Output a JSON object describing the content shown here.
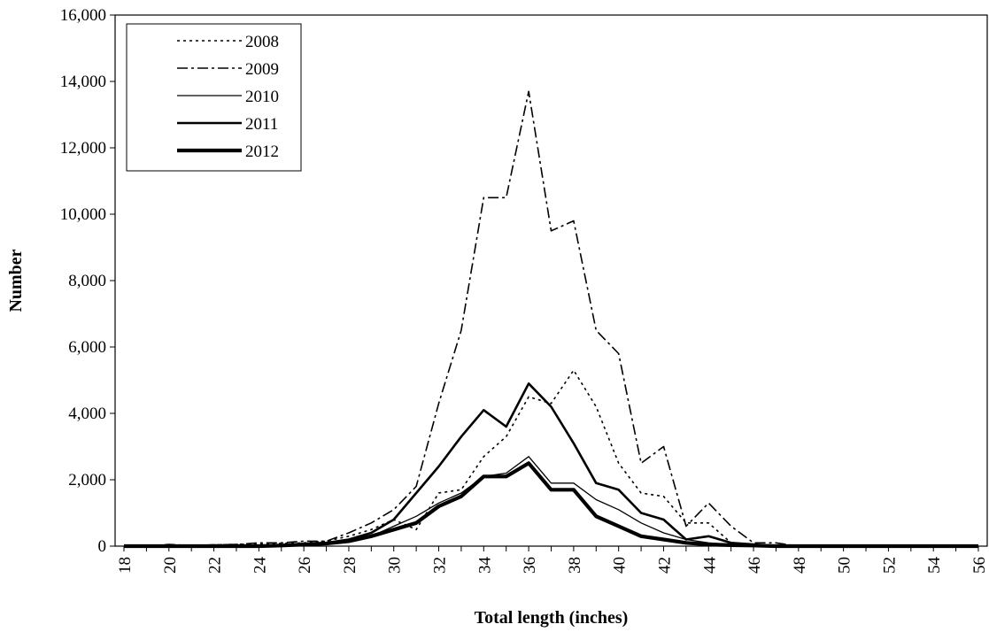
{
  "chart_data": {
    "type": "line",
    "xlabel": "Total length (inches)",
    "ylabel": "Number",
    "ylim": [
      0,
      16000
    ],
    "xlim": [
      18,
      56
    ],
    "x_tick_labels": [
      "18",
      "20",
      "22",
      "24",
      "26",
      "28",
      "30",
      "32",
      "34",
      "36",
      "38",
      "40",
      "42",
      "44",
      "46",
      "48",
      "50",
      "52",
      "54",
      "56"
    ],
    "y_tick_labels": [
      "0",
      "2,000",
      "4,000",
      "6,000",
      "8,000",
      "10,000",
      "12,000",
      "14,000",
      "16,000"
    ],
    "grid": false,
    "legend_position": "top-left",
    "x": [
      18,
      19,
      20,
      21,
      22,
      23,
      24,
      25,
      26,
      27,
      28,
      29,
      30,
      31,
      32,
      33,
      34,
      35,
      36,
      37,
      38,
      39,
      40,
      41,
      42,
      43,
      44,
      45,
      46,
      47,
      48,
      49,
      50,
      51,
      52,
      53,
      54,
      55,
      56
    ],
    "series": [
      {
        "name": "2008",
        "style": "dotted",
        "values": [
          0,
          0,
          30,
          20,
          40,
          50,
          60,
          80,
          100,
          150,
          300,
          500,
          800,
          500,
          1600,
          1700,
          2700,
          3300,
          4500,
          4300,
          5300,
          4200,
          2500,
          1600,
          1500,
          700,
          700,
          100,
          0,
          0,
          0,
          0,
          0,
          0,
          0,
          0,
          0,
          0,
          0
        ]
      },
      {
        "name": "2009",
        "style": "dashdot",
        "values": [
          0,
          0,
          50,
          20,
          40,
          50,
          100,
          100,
          150,
          150,
          400,
          700,
          1100,
          1800,
          4300,
          6500,
          10500,
          10500,
          13700,
          9500,
          9800,
          6500,
          5800,
          2500,
          3000,
          600,
          1300,
          600,
          100,
          100,
          0,
          0,
          0,
          0,
          0,
          0,
          0,
          0,
          0
        ]
      },
      {
        "name": "2010",
        "style": "thin",
        "values": [
          0,
          0,
          0,
          0,
          0,
          20,
          30,
          40,
          50,
          80,
          150,
          300,
          600,
          900,
          1300,
          1600,
          2100,
          2200,
          2700,
          1900,
          1900,
          1400,
          1100,
          700,
          400,
          200,
          100,
          50,
          20,
          0,
          0,
          0,
          0,
          0,
          0,
          0,
          0,
          0,
          0
        ]
      },
      {
        "name": "2011",
        "style": "medium",
        "values": [
          0,
          0,
          0,
          0,
          0,
          0,
          0,
          20,
          50,
          100,
          200,
          400,
          800,
          1600,
          2400,
          3300,
          4100,
          3600,
          4900,
          4200,
          3100,
          1900,
          1700,
          1000,
          800,
          200,
          300,
          100,
          50,
          0,
          0,
          0,
          0,
          0,
          0,
          0,
          0,
          0,
          0
        ]
      },
      {
        "name": "2012",
        "style": "thick",
        "values": [
          0,
          0,
          0,
          0,
          0,
          0,
          0,
          20,
          50,
          80,
          150,
          300,
          500,
          700,
          1200,
          1500,
          2100,
          2100,
          2500,
          1700,
          1700,
          900,
          600,
          300,
          200,
          100,
          50,
          30,
          20,
          0,
          0,
          0,
          0,
          0,
          0,
          0,
          0,
          0,
          0
        ]
      }
    ]
  }
}
